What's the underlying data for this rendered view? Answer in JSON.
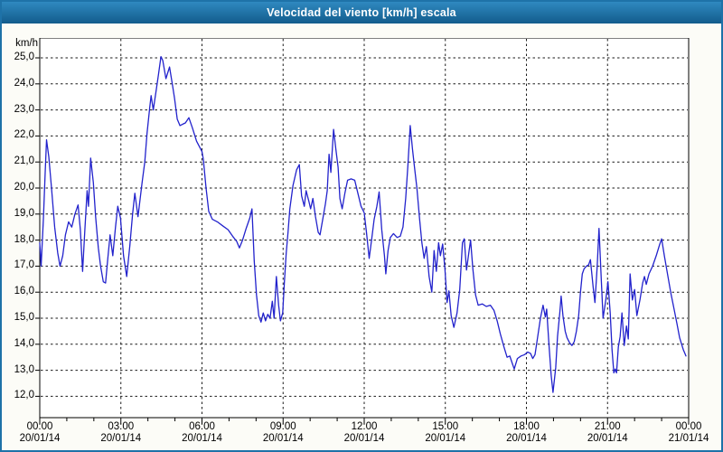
{
  "titlebar": {
    "title": "Velocidad del viento [km/h] escala"
  },
  "colors": {
    "frame_border": "#1e72a8",
    "titlebar_top": "#2f89c0",
    "titlebar_bottom": "#135c8c",
    "title_text": "#ffffff",
    "page_bg": "#fcfcf7",
    "plot_bg": "#ffffff",
    "plot_border": "#000000",
    "grid": "#1a1a1a",
    "label_text": "#000000",
    "line": "#2222cc"
  },
  "chart_data": {
    "type": "line",
    "title": "Velocidad del viento [km/h] escala",
    "grid": "dashed",
    "legend": "none",
    "y_axis": {
      "unit_label": "km/h",
      "min": 12,
      "max": 25,
      "step": 1,
      "tick_labels": [
        "25,0",
        "24,0",
        "23,0",
        "22,0",
        "21,0",
        "20,0",
        "19,0",
        "18,0",
        "17,0",
        "16,0",
        "15,0",
        "14,0",
        "13,0",
        "12,0"
      ]
    },
    "x_axis": {
      "span_minutes": 1440,
      "minor_tick_minutes": 60,
      "ticks": [
        {
          "t": 0,
          "time": "00:00",
          "date": "20/01/14"
        },
        {
          "t": 180,
          "time": "03:00",
          "date": "20/01/14"
        },
        {
          "t": 360,
          "time": "06:00",
          "date": "20/01/14"
        },
        {
          "t": 540,
          "time": "09:00",
          "date": "20/01/14"
        },
        {
          "t": 720,
          "time": "12:00",
          "date": "20/01/14"
        },
        {
          "t": 900,
          "time": "15:00",
          "date": "20/01/14"
        },
        {
          "t": 1080,
          "time": "18:00",
          "date": "20/01/14"
        },
        {
          "t": 1260,
          "time": "21:00",
          "date": "20/01/14"
        },
        {
          "t": 1440,
          "time": "00:00",
          "date": "21/01/14"
        }
      ]
    },
    "series": [
      {
        "name": "Velocidad del viento [km/h]",
        "color": "#2222cc",
        "points": [
          [
            0,
            17.9
          ],
          [
            3,
            17.0
          ],
          [
            8,
            18.8
          ],
          [
            12,
            20.6
          ],
          [
            15,
            21.85
          ],
          [
            20,
            21.2
          ],
          [
            26,
            20.0
          ],
          [
            33,
            18.5
          ],
          [
            40,
            17.5
          ],
          [
            45,
            17.0
          ],
          [
            51,
            17.4
          ],
          [
            57,
            18.2
          ],
          [
            64,
            18.7
          ],
          [
            71,
            18.5
          ],
          [
            78,
            19.0
          ],
          [
            85,
            19.35
          ],
          [
            90,
            18.4
          ],
          [
            95,
            16.8
          ],
          [
            100,
            18.4
          ],
          [
            105,
            19.9
          ],
          [
            108,
            19.3
          ],
          [
            113,
            21.15
          ],
          [
            119,
            20.2
          ],
          [
            124,
            18.9
          ],
          [
            130,
            17.7
          ],
          [
            135,
            17.0
          ],
          [
            141,
            16.4
          ],
          [
            146,
            16.35
          ],
          [
            151,
            17.3
          ],
          [
            156,
            18.2
          ],
          [
            162,
            17.4
          ],
          [
            168,
            18.5
          ],
          [
            173,
            19.3
          ],
          [
            179,
            18.85
          ],
          [
            186,
            17.4
          ],
          [
            193,
            16.6
          ],
          [
            200,
            17.8
          ],
          [
            206,
            19.0
          ],
          [
            211,
            19.8
          ],
          [
            218,
            18.9
          ],
          [
            227,
            20.2
          ],
          [
            233,
            21.0
          ],
          [
            238,
            22.1
          ],
          [
            244,
            23.1
          ],
          [
            247,
            23.55
          ],
          [
            252,
            23.0
          ],
          [
            258,
            23.7
          ],
          [
            263,
            24.3
          ],
          [
            269,
            25.05
          ],
          [
            273,
            24.9
          ],
          [
            280,
            24.2
          ],
          [
            288,
            24.65
          ],
          [
            295,
            23.9
          ],
          [
            299,
            23.45
          ],
          [
            305,
            22.65
          ],
          [
            311,
            22.4
          ],
          [
            317,
            22.45
          ],
          [
            323,
            22.5
          ],
          [
            331,
            22.7
          ],
          [
            339,
            22.3
          ],
          [
            348,
            21.8
          ],
          [
            357,
            21.5
          ],
          [
            360,
            21.4
          ],
          [
            363,
            21.1
          ],
          [
            369,
            20.0
          ],
          [
            375,
            19.1
          ],
          [
            383,
            18.8
          ],
          [
            394,
            18.7
          ],
          [
            406,
            18.55
          ],
          [
            418,
            18.4
          ],
          [
            428,
            18.15
          ],
          [
            437,
            17.95
          ],
          [
            443,
            17.7
          ],
          [
            450,
            18.0
          ],
          [
            458,
            18.45
          ],
          [
            466,
            18.85
          ],
          [
            471,
            19.2
          ],
          [
            476,
            17.2
          ],
          [
            481,
            15.9
          ],
          [
            486,
            15.1
          ],
          [
            491,
            14.85
          ],
          [
            496,
            15.2
          ],
          [
            501,
            14.9
          ],
          [
            506,
            15.15
          ],
          [
            511,
            15.0
          ],
          [
            516,
            15.65
          ],
          [
            520,
            15.0
          ],
          [
            525,
            16.6
          ],
          [
            530,
            15.5
          ],
          [
            534,
            14.9
          ],
          [
            539,
            15.2
          ],
          [
            543,
            16.4
          ],
          [
            547,
            17.5
          ],
          [
            551,
            18.3
          ],
          [
            555,
            19.2
          ],
          [
            562,
            20.1
          ],
          [
            570,
            20.7
          ],
          [
            576,
            20.9
          ],
          [
            581,
            19.7
          ],
          [
            587,
            19.3
          ],
          [
            591,
            19.9
          ],
          [
            597,
            19.5
          ],
          [
            601,
            19.2
          ],
          [
            606,
            19.6
          ],
          [
            612,
            18.9
          ],
          [
            618,
            18.3
          ],
          [
            622,
            18.2
          ],
          [
            628,
            18.8
          ],
          [
            634,
            19.4
          ],
          [
            638,
            19.9
          ],
          [
            642,
            21.3
          ],
          [
            646,
            20.6
          ],
          [
            652,
            22.25
          ],
          [
            657,
            21.5
          ],
          [
            662,
            20.8
          ],
          [
            666,
            19.6
          ],
          [
            671,
            19.2
          ],
          [
            677,
            19.8
          ],
          [
            683,
            20.3
          ],
          [
            691,
            20.35
          ],
          [
            699,
            20.3
          ],
          [
            706,
            19.8
          ],
          [
            713,
            19.3
          ],
          [
            720,
            19.05
          ],
          [
            725,
            18.3
          ],
          [
            731,
            17.3
          ],
          [
            737,
            18.1
          ],
          [
            742,
            18.8
          ],
          [
            748,
            19.3
          ],
          [
            753,
            19.85
          ],
          [
            759,
            18.4
          ],
          [
            765,
            17.4
          ],
          [
            768,
            16.7
          ],
          [
            773,
            17.6
          ],
          [
            778,
            18.1
          ],
          [
            785,
            18.25
          ],
          [
            793,
            18.1
          ],
          [
            800,
            18.15
          ],
          [
            806,
            18.5
          ],
          [
            812,
            19.6
          ],
          [
            817,
            20.9
          ],
          [
            822,
            22.4
          ],
          [
            827,
            21.5
          ],
          [
            831,
            20.9
          ],
          [
            837,
            20.0
          ],
          [
            843,
            18.8
          ],
          [
            848,
            17.9
          ],
          [
            853,
            17.3
          ],
          [
            858,
            17.75
          ],
          [
            864,
            16.6
          ],
          [
            870,
            16.0
          ],
          [
            875,
            17.6
          ],
          [
            880,
            16.8
          ],
          [
            885,
            17.9
          ],
          [
            889,
            17.4
          ],
          [
            894,
            17.85
          ],
          [
            899,
            16.9
          ],
          [
            904,
            15.6
          ],
          [
            908,
            16.05
          ],
          [
            913,
            15.1
          ],
          [
            919,
            14.65
          ],
          [
            926,
            15.2
          ],
          [
            932,
            16.1
          ],
          [
            938,
            17.9
          ],
          [
            942,
            18.05
          ],
          [
            947,
            16.85
          ],
          [
            952,
            17.5
          ],
          [
            956,
            18.0
          ],
          [
            961,
            16.9
          ],
          [
            967,
            15.9
          ],
          [
            973,
            15.5
          ],
          [
            982,
            15.55
          ],
          [
            991,
            15.45
          ],
          [
            1000,
            15.5
          ],
          [
            1008,
            15.3
          ],
          [
            1015,
            14.9
          ],
          [
            1022,
            14.4
          ],
          [
            1030,
            13.9
          ],
          [
            1037,
            13.5
          ],
          [
            1043,
            13.55
          ],
          [
            1048,
            13.3
          ],
          [
            1053,
            13.05
          ],
          [
            1060,
            13.45
          ],
          [
            1068,
            13.55
          ],
          [
            1076,
            13.6
          ],
          [
            1083,
            13.7
          ],
          [
            1089,
            13.65
          ],
          [
            1094,
            13.45
          ],
          [
            1099,
            13.6
          ],
          [
            1105,
            14.3
          ],
          [
            1111,
            15.0
          ],
          [
            1117,
            15.5
          ],
          [
            1122,
            15.05
          ],
          [
            1125,
            15.35
          ],
          [
            1130,
            14.0
          ],
          [
            1135,
            12.8
          ],
          [
            1139,
            12.15
          ],
          [
            1145,
            13.1
          ],
          [
            1149,
            14.3
          ],
          [
            1154,
            15.2
          ],
          [
            1157,
            15.85
          ],
          [
            1161,
            15.1
          ],
          [
            1166,
            14.5
          ],
          [
            1170,
            14.25
          ],
          [
            1176,
            14.05
          ],
          [
            1181,
            13.95
          ],
          [
            1186,
            14.1
          ],
          [
            1191,
            14.5
          ],
          [
            1196,
            15.1
          ],
          [
            1200,
            16.0
          ],
          [
            1204,
            16.7
          ],
          [
            1208,
            16.9
          ],
          [
            1213,
            17.0
          ],
          [
            1218,
            17.05
          ],
          [
            1222,
            17.25
          ],
          [
            1228,
            16.2
          ],
          [
            1232,
            15.6
          ],
          [
            1237,
            17.0
          ],
          [
            1241,
            18.45
          ],
          [
            1246,
            16.5
          ],
          [
            1250,
            15.0
          ],
          [
            1256,
            15.7
          ],
          [
            1261,
            16.4
          ],
          [
            1266,
            15.2
          ],
          [
            1270,
            13.8
          ],
          [
            1274,
            12.9
          ],
          [
            1277,
            13.05
          ],
          [
            1280,
            12.9
          ],
          [
            1284,
            13.9
          ],
          [
            1288,
            14.3
          ],
          [
            1292,
            15.2
          ],
          [
            1297,
            13.95
          ],
          [
            1302,
            14.7
          ],
          [
            1306,
            14.2
          ],
          [
            1310,
            16.7
          ],
          [
            1315,
            15.7
          ],
          [
            1320,
            16.1
          ],
          [
            1325,
            15.1
          ],
          [
            1332,
            15.7
          ],
          [
            1338,
            16.35
          ],
          [
            1342,
            16.6
          ],
          [
            1346,
            16.3
          ],
          [
            1352,
            16.7
          ],
          [
            1360,
            17.0
          ],
          [
            1368,
            17.4
          ],
          [
            1375,
            17.8
          ],
          [
            1380,
            18.05
          ],
          [
            1386,
            17.4
          ],
          [
            1392,
            16.8
          ],
          [
            1400,
            16.0
          ],
          [
            1406,
            15.5
          ],
          [
            1414,
            14.8
          ],
          [
            1420,
            14.25
          ],
          [
            1428,
            13.8
          ],
          [
            1434,
            13.55
          ]
        ]
      }
    ]
  }
}
